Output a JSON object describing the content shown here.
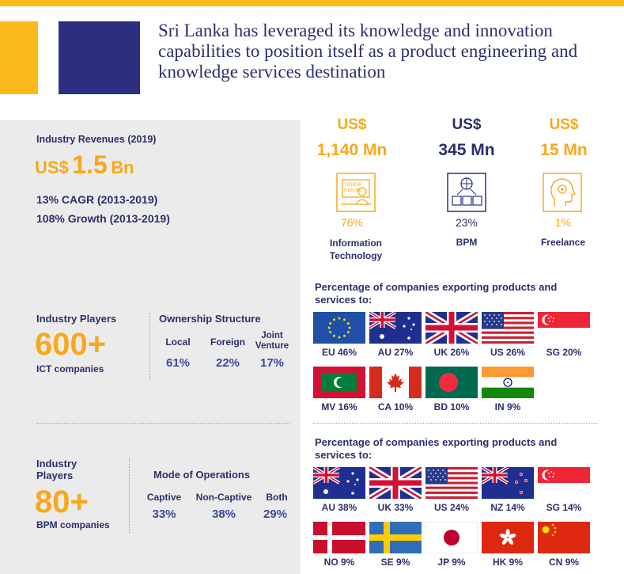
{
  "headline": "Sri Lanka has leveraged its knowledge and innovation capabilities to position itself as a product engineering and knowledge services destination",
  "revenue": {
    "label": "Industry Revenues (2019)",
    "currency": "US$",
    "value": "1.5",
    "unit": "Bn",
    "cagr": "13% CAGR (2013-2019)",
    "growth": "108% Growth (2013-2019)"
  },
  "segments": [
    {
      "currency": "US$",
      "value": "1,140 Mn",
      "pct": "76%",
      "label": "Information Technology",
      "icon": "computer-person-icon",
      "color": "#f7a81b"
    },
    {
      "currency": "US$",
      "value": "345 Mn",
      "pct": "23%",
      "label": "BPM",
      "icon": "network-people-icon",
      "color": "#2c2f6b"
    },
    {
      "currency": "US$",
      "value": "15 Mn",
      "pct": "1%",
      "label": "Freelance",
      "icon": "head-gear-icon",
      "color": "#f7a81b"
    }
  ],
  "ict": {
    "players_label": "Industry Players",
    "count": "600+",
    "count_label": "ICT companies",
    "ownership_title": "Ownership Structure",
    "cols": [
      "Local",
      "Foreign",
      "Joint Venture"
    ],
    "values": [
      "61%",
      "22%",
      "17%"
    ],
    "export_title": "Percentage of companies exporting products and services to:",
    "exports": [
      {
        "flag": "eu-flag-icon",
        "label": "EU 46%"
      },
      {
        "flag": "australia-flag-icon",
        "label": "AU 27%"
      },
      {
        "flag": "uk-flag-icon",
        "label": "UK 26%"
      },
      {
        "flag": "us-flag-icon",
        "label": "US 26%"
      },
      {
        "flag": "singapore-flag-icon",
        "label": "SG 20%"
      },
      {
        "flag": "maldives-flag-icon",
        "label": "MV 16%"
      },
      {
        "flag": "canada-flag-icon",
        "label": "CA 10%"
      },
      {
        "flag": "bangladesh-flag-icon",
        "label": "BD 10%"
      },
      {
        "flag": "india-flag-icon",
        "label": "IN 9%"
      }
    ]
  },
  "bpm": {
    "players_label": "Industry Players",
    "count": "80+",
    "count_label": "BPM companies",
    "mode_title": "Mode of Operations",
    "cols": [
      "Captive",
      "Non-Captive",
      "Both"
    ],
    "values": [
      "33%",
      "38%",
      "29%"
    ],
    "export_title": "Percentage of companies exporting products and services to:",
    "exports": [
      {
        "flag": "australia-flag-icon",
        "label": "AU 38%"
      },
      {
        "flag": "uk-flag-icon",
        "label": "UK 33%"
      },
      {
        "flag": "us-flag-icon",
        "label": "US 24%"
      },
      {
        "flag": "new-zealand-flag-icon",
        "label": "NZ 14%"
      },
      {
        "flag": "singapore-flag-icon",
        "label": "SG 14%"
      },
      {
        "flag": "denmark-flag-icon",
        "label": "NO 9%"
      },
      {
        "flag": "sweden-flag-icon",
        "label": "SE 9%"
      },
      {
        "flag": "japan-flag-icon",
        "label": "JP 9%"
      },
      {
        "flag": "hong-kong-flag-icon",
        "label": "HK 9%"
      },
      {
        "flag": "china-flag-icon",
        "label": "CN 9%"
      }
    ]
  },
  "colors": {
    "accent_orange": "#f7a81b",
    "brand_navy": "#2c2f6b",
    "panel_grey": "#ebebeb"
  }
}
